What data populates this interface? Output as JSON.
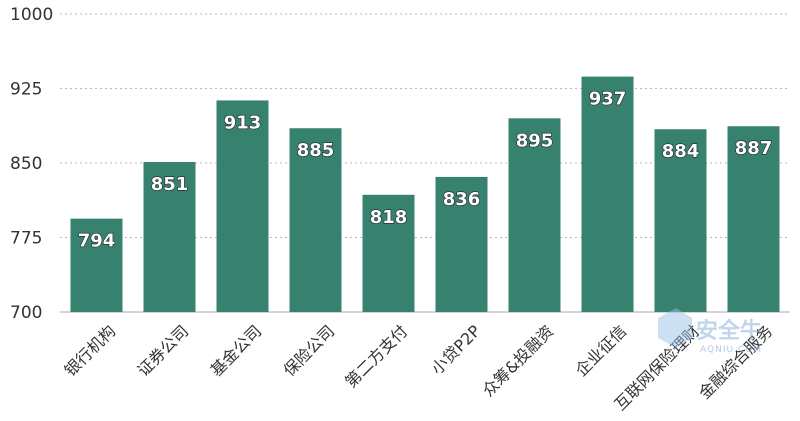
{
  "chart_data": {
    "type": "bar",
    "categories": [
      "银行机构",
      "证券公司",
      "基金公司",
      "保险公司",
      "第二方支付",
      "小贷P2P",
      "众筹&投融资",
      "企业征信",
      "互联网保险理财",
      "金融综合服务"
    ],
    "values": [
      794,
      851,
      913,
      885,
      818,
      836,
      895,
      937,
      884,
      887
    ],
    "yticks": [
      "700",
      "775",
      "850",
      "925",
      "1000"
    ],
    "ylim": [
      700,
      1000
    ],
    "grid": true,
    "bar_color": "#37826f",
    "title": "",
    "xlabel": "",
    "ylabel": ""
  },
  "watermark": {
    "text": "安全牛",
    "subtext": "AQNIU.COM"
  }
}
